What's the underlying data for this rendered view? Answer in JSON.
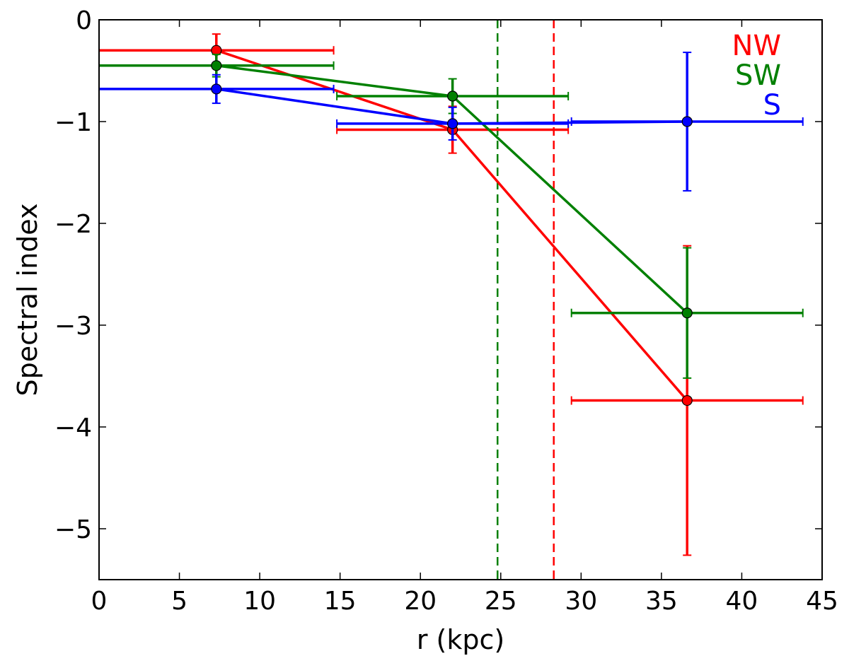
{
  "chart_data": {
    "type": "line",
    "title": "",
    "xlabel": "r (kpc)",
    "ylabel": "Spectral index",
    "xlim": [
      0,
      45
    ],
    "ylim": [
      -5.5,
      0
    ],
    "xticks": [
      0,
      5,
      10,
      15,
      20,
      25,
      30,
      35,
      40,
      45
    ],
    "yticks": [
      0,
      -1,
      -2,
      -3,
      -4,
      -5
    ],
    "xtick_labels": [
      "0",
      "5",
      "10",
      "15",
      "20",
      "25",
      "30",
      "35",
      "40",
      "45"
    ],
    "ytick_labels": [
      "0",
      "−1",
      "−2",
      "−3",
      "−4",
      "−5"
    ],
    "grid": false,
    "legend_position": "top-right",
    "series": [
      {
        "name": "NW",
        "color": "#ff0000",
        "x": [
          7.3,
          22.0,
          36.6
        ],
        "y": [
          -0.3,
          -1.08,
          -3.74
        ],
        "xerr": [
          7.3,
          7.2,
          7.2
        ],
        "yerr": [
          0.16,
          0.23,
          1.52
        ]
      },
      {
        "name": "SW",
        "color": "#008000",
        "x": [
          7.3,
          22.0,
          36.6
        ],
        "y": [
          -0.45,
          -0.75,
          -2.88
        ],
        "xerr": [
          7.3,
          7.2,
          7.2
        ],
        "yerr": [
          0.11,
          0.17,
          0.64
        ]
      },
      {
        "name": "S",
        "color": "#0000ff",
        "x": [
          7.3,
          22.0,
          36.6
        ],
        "y": [
          -0.68,
          -1.02,
          -1.0
        ],
        "xerr": [
          7.3,
          7.2,
          7.2
        ],
        "yerr": [
          0.14,
          0.16,
          0.68
        ]
      }
    ],
    "vlines": [
      {
        "x": 24.8,
        "color": "#008000",
        "style": "dashed"
      },
      {
        "x": 28.3,
        "color": "#ff0000",
        "style": "dashed"
      }
    ]
  }
}
